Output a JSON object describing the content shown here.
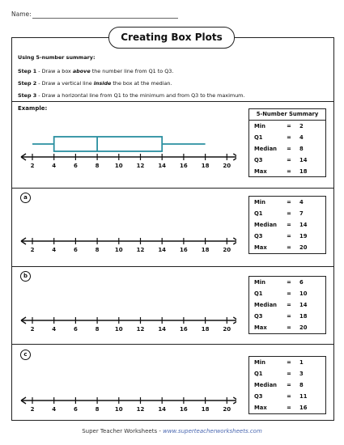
{
  "header": {
    "name_label": "Name:"
  },
  "title": "Creating Box Plots",
  "instructions": {
    "heading": "Using 5-number summary:",
    "steps": [
      {
        "label": "Step 1",
        "pre": " - Draw a box ",
        "em": "above",
        "post": " the number line from Q1 to Q3."
      },
      {
        "label": "Step 2",
        "pre": " - Draw a vertical line ",
        "em": "inside",
        "post": " the box at the median."
      },
      {
        "label": "Step 3",
        "pre": " - Draw a horizontal line from Q1 to the minimum and from Q3 to the maximum.",
        "em": "",
        "post": ""
      }
    ]
  },
  "example": {
    "label": "Example:",
    "summary_heading": "5-Number Summary",
    "summary": {
      "min": "2",
      "q1": "4",
      "median": "8",
      "q3": "14",
      "max": "18"
    },
    "boxplot": {
      "min": 2,
      "q1": 4,
      "median": 8,
      "q3": 14,
      "max": 18,
      "color": "#2a8fa0"
    }
  },
  "axis": {
    "ticks": [
      "2",
      "4",
      "6",
      "8",
      "10",
      "12",
      "14",
      "16",
      "18",
      "20"
    ],
    "tick_values": [
      2,
      4,
      6,
      8,
      10,
      12,
      14,
      16,
      18,
      20
    ]
  },
  "labels": {
    "min": "Min",
    "q1": "Q1",
    "median": "Median",
    "q3": "Q3",
    "max": "Max",
    "eq": "="
  },
  "problems": [
    {
      "letter": "a",
      "summary": {
        "min": "4",
        "q1": "7",
        "median": "14",
        "q3": "19",
        "max": "20"
      }
    },
    {
      "letter": "b",
      "summary": {
        "min": "6",
        "q1": "10",
        "median": "14",
        "q3": "18",
        "max": "20"
      }
    },
    {
      "letter": "c",
      "summary": {
        "min": "1",
        "q1": "3",
        "median": "8",
        "q3": "11",
        "max": "16"
      }
    }
  ],
  "footer": {
    "brand": "Super Teacher Worksheets",
    "sep": " - ",
    "site": "www.superteacherworksheets.com"
  }
}
